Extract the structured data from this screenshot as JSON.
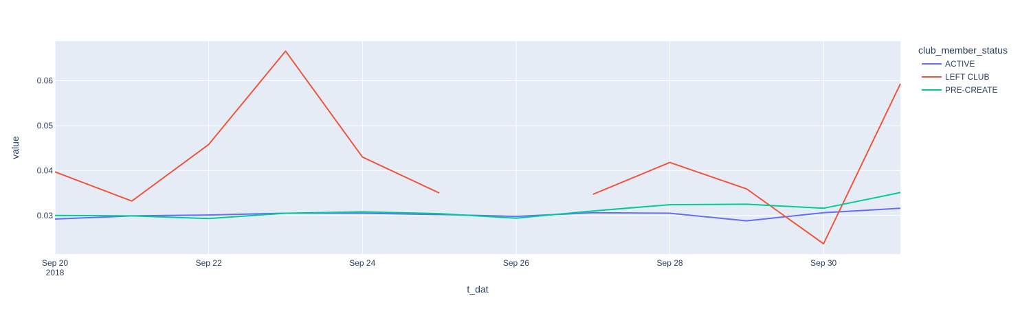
{
  "chart_data": {
    "type": "line",
    "xlabel": "t_dat",
    "ylabel": "value",
    "legend_title": "club_member_status",
    "legend_position": "right",
    "grid": true,
    "x_ticks": [
      {
        "date": "2018-09-20",
        "label": "Sep 20",
        "sublabel": "2018"
      },
      {
        "date": "2018-09-22",
        "label": "Sep 22",
        "sublabel": ""
      },
      {
        "date": "2018-09-24",
        "label": "Sep 24",
        "sublabel": ""
      },
      {
        "date": "2018-09-26",
        "label": "Sep 26",
        "sublabel": ""
      },
      {
        "date": "2018-09-28",
        "label": "Sep 28",
        "sublabel": ""
      },
      {
        "date": "2018-09-30",
        "label": "Sep 30",
        "sublabel": ""
      }
    ],
    "y_ticks": [
      {
        "value": 0.03,
        "label": "0.03"
      },
      {
        "value": 0.04,
        "label": "0.04"
      },
      {
        "value": 0.05,
        "label": "0.05"
      },
      {
        "value": 0.06,
        "label": "0.06"
      }
    ],
    "xlim": [
      "2018-09-20",
      "2018-10-01"
    ],
    "ylim": [
      0.0214,
      0.0688
    ],
    "x": [
      "2018-09-20",
      "2018-09-21",
      "2018-09-22",
      "2018-09-23",
      "2018-09-24",
      "2018-09-25",
      "2018-09-26",
      "2018-09-27",
      "2018-09-28",
      "2018-09-29",
      "2018-09-30",
      "2018-10-01"
    ],
    "series": [
      {
        "name": "ACTIVE",
        "color": "#636efa",
        "values": [
          0.0292,
          0.0299,
          0.0301,
          0.0305,
          0.0305,
          0.0302,
          0.0298,
          0.0306,
          0.0305,
          0.0288,
          0.0306,
          0.0316
        ]
      },
      {
        "name": "LEFT CLUB",
        "color": "#ef553b",
        "values": [
          0.0397,
          0.0332,
          0.0458,
          0.0666,
          0.043,
          0.035,
          null,
          0.0347,
          0.0418,
          0.0359,
          0.0237,
          0.0593
        ]
      },
      {
        "name": "PRE-CREATE",
        "color": "#00cc96",
        "values": [
          0.03,
          0.0299,
          0.0293,
          0.0305,
          0.0308,
          0.0304,
          0.0294,
          0.031,
          0.0324,
          0.0325,
          0.0316,
          0.0351
        ]
      }
    ]
  }
}
